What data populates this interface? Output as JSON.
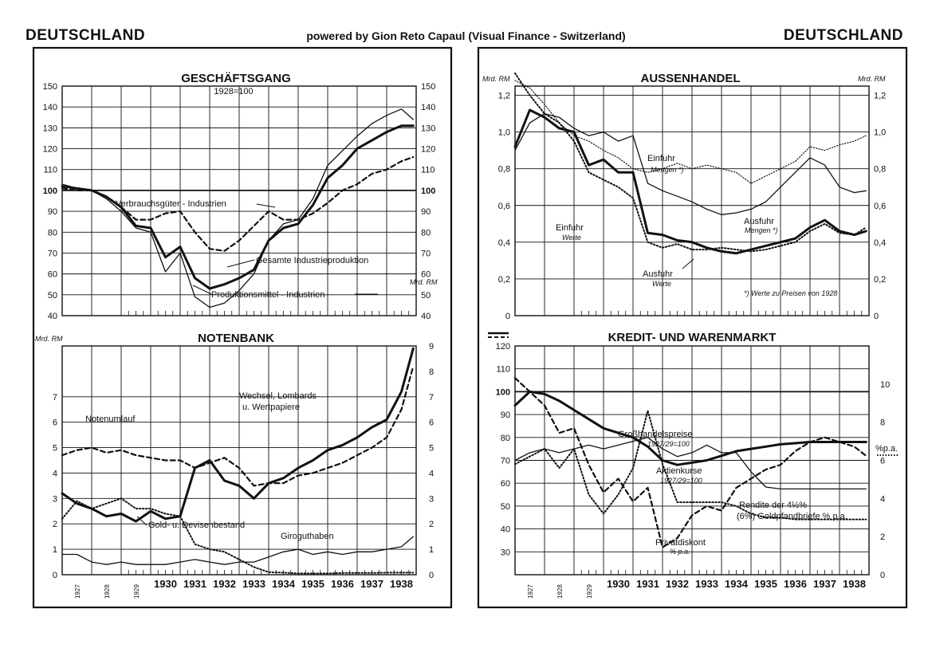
{
  "header": {
    "left_title": "DEUTSCHLAND",
    "right_title": "DEUTSCHLAND",
    "credit": "powered by Gion Reto Capaul (Visual Finance - Switzerland)"
  },
  "x_axis": {
    "small_labels": [
      "1927",
      "1928",
      "1929"
    ],
    "year_labels": [
      "1930",
      "1931",
      "1932",
      "1933",
      "1934",
      "1935",
      "1936",
      "1937",
      "1938"
    ]
  },
  "chart_data": [
    {
      "id": "geschaeftsgang",
      "type": "line",
      "title": "GESCHÄFTSGANG",
      "subtitle": "1928=100",
      "ylim": [
        40,
        150
      ],
      "yticks": [
        "150",
        "140",
        "130",
        "120",
        "110",
        "100",
        "90",
        "80",
        "70",
        "60",
        "50",
        "40"
      ],
      "x": [
        1927,
        1927.5,
        1928,
        1928.5,
        1929,
        1929.5,
        1930,
        1930.5,
        1931,
        1931.5,
        1932,
        1932.5,
        1933,
        1933.5,
        1934,
        1934.5,
        1935,
        1935.5,
        1936,
        1936.5,
        1937,
        1937.5,
        1938,
        1938.5,
        1938.9
      ],
      "series": [
        {
          "name": "Gesamte Industrieproduktion",
          "style": "thick",
          "values": [
            102,
            101,
            100,
            97,
            92,
            83,
            82,
            68,
            73,
            58,
            53,
            55,
            58,
            62,
            76,
            82,
            84,
            93,
            106,
            112,
            120,
            124,
            128,
            131,
            131
          ]
        },
        {
          "name": "Produktionsmittel - Industrien",
          "style": "thin",
          "values": [
            103,
            101,
            100,
            96,
            90,
            82,
            80,
            61,
            70,
            49,
            44,
            46,
            52,
            60,
            76,
            84,
            86,
            96,
            112,
            119,
            126,
            132,
            136,
            139,
            134
          ]
        },
        {
          "name": "Verbrauchsgüter - Industrien",
          "style": "dashed",
          "values": [
            101,
            100,
            100,
            97,
            92,
            86,
            86,
            89,
            90,
            80,
            72,
            71,
            76,
            83,
            90,
            86,
            86,
            89,
            94,
            100,
            103,
            108,
            110,
            114,
            116
          ]
        }
      ],
      "labels": {
        "verbrauch": "Verbrauchsgüter - Industrien",
        "gesamt": "Gesamte Industrieproduktion",
        "produktion": "Produktionsmittel - Industrien"
      }
    },
    {
      "id": "notenbank",
      "type": "line",
      "title": "NOTENBANK",
      "unit": "Mrd. RM",
      "ylim": [
        0,
        9
      ],
      "yticks_left": [
        "7",
        "6",
        "5",
        "4",
        "3",
        "2",
        "1",
        "0"
      ],
      "yticks_right": [
        "9",
        "8",
        "7",
        "6",
        "5",
        "4",
        "3",
        "2",
        "1",
        "0"
      ],
      "x": [
        1927,
        1927.5,
        1928,
        1928.5,
        1929,
        1929.5,
        1930,
        1930.5,
        1931,
        1931.5,
        1932,
        1932.5,
        1933,
        1933.5,
        1934,
        1934.5,
        1935,
        1935.5,
        1936,
        1936.5,
        1937,
        1937.5,
        1938,
        1938.5,
        1938.9
      ],
      "series": [
        {
          "name": "Notenumlauf",
          "style": "dashed",
          "values": [
            4.7,
            4.9,
            5.0,
            4.8,
            4.9,
            4.7,
            4.6,
            4.5,
            4.5,
            4.2,
            4.4,
            4.6,
            4.2,
            3.5,
            3.6,
            3.6,
            3.9,
            4.0,
            4.2,
            4.4,
            4.7,
            5.0,
            5.4,
            6.5,
            8.2
          ]
        },
        {
          "name": "Wechsel, Lombards u. Wertpapiere",
          "style": "thick",
          "values": [
            3.2,
            2.8,
            2.6,
            2.3,
            2.4,
            2.1,
            2.5,
            2.2,
            2.3,
            4.2,
            4.5,
            3.7,
            3.5,
            3.0,
            3.6,
            3.8,
            4.2,
            4.5,
            4.9,
            5.1,
            5.4,
            5.8,
            6.1,
            7.2,
            8.9
          ]
        },
        {
          "name": "Gold- u. Devisenbestand",
          "style": "dotted",
          "values": [
            2.2,
            2.9,
            2.6,
            2.8,
            3.0,
            2.6,
            2.6,
            2.4,
            2.3,
            1.2,
            1.0,
            0.9,
            0.6,
            0.3,
            0.1,
            0.08,
            0.05,
            0.05,
            0.05,
            0.07,
            0.07,
            0.07,
            0.08,
            0.08,
            0.08
          ]
        },
        {
          "name": "Giroguthaben",
          "style": "thin",
          "values": [
            0.8,
            0.8,
            0.5,
            0.4,
            0.5,
            0.4,
            0.4,
            0.4,
            0.5,
            0.6,
            0.5,
            0.4,
            0.5,
            0.5,
            0.7,
            0.9,
            1.0,
            0.8,
            0.9,
            0.8,
            0.9,
            0.9,
            1.0,
            1.1,
            1.5
          ]
        }
      ],
      "labels": {
        "noten": "Notenumlauf",
        "wechsel1": "Wechsel, Lombards",
        "wechsel2": "u. Wertpapiere",
        "gold": "Gold- u. Devisenbestand",
        "giro": "Giroguthaben"
      }
    },
    {
      "id": "aussenhandel",
      "type": "line",
      "title": "AUSSENHANDEL",
      "unit": "Mrd. RM",
      "ylim": [
        0,
        1.25
      ],
      "yticks": [
        "1,2",
        "1,0",
        "0,8",
        "0,6",
        "0,4",
        "0,2",
        "0"
      ],
      "x": [
        1927,
        1927.5,
        1928,
        1928.5,
        1929,
        1929.5,
        1930,
        1930.5,
        1931,
        1931.5,
        1932,
        1932.5,
        1933,
        1933.5,
        1934,
        1934.5,
        1935,
        1935.5,
        1936,
        1936.5,
        1937,
        1937.5,
        1938,
        1938.5,
        1938.9
      ],
      "series": [
        {
          "name": "Ausfuhr Werte",
          "style": "thick",
          "values": [
            0.92,
            1.12,
            1.08,
            1.02,
            1.0,
            0.82,
            0.85,
            0.78,
            0.78,
            0.45,
            0.44,
            0.41,
            0.4,
            0.37,
            0.35,
            0.34,
            0.36,
            0.38,
            0.4,
            0.42,
            0.48,
            0.52,
            0.46,
            0.44,
            0.46
          ]
        },
        {
          "name": "Einfuhr Werte",
          "style": "dotted",
          "values": [
            1.32,
            1.2,
            1.1,
            1.05,
            0.95,
            0.78,
            0.74,
            0.7,
            0.64,
            0.4,
            0.37,
            0.39,
            0.36,
            0.36,
            0.37,
            0.36,
            0.35,
            0.36,
            0.38,
            0.4,
            0.46,
            0.5,
            0.45,
            0.44,
            0.48
          ]
        },
        {
          "name": "Ausfuhr Mengen",
          "style": "thin",
          "values": [
            0.9,
            1.05,
            1.1,
            1.08,
            1.02,
            0.98,
            1.0,
            0.95,
            0.98,
            0.72,
            0.68,
            0.65,
            0.62,
            0.58,
            0.55,
            0.56,
            0.58,
            0.62,
            0.7,
            0.78,
            0.86,
            0.82,
            0.7,
            0.67,
            0.68
          ]
        },
        {
          "name": "Einfuhr Mengen",
          "style": "dotted-thin",
          "values": [
            1.28,
            1.24,
            1.15,
            1.05,
            0.98,
            0.95,
            0.9,
            0.86,
            0.8,
            0.78,
            0.8,
            0.83,
            0.8,
            0.82,
            0.8,
            0.78,
            0.72,
            0.76,
            0.8,
            0.84,
            0.92,
            0.9,
            0.93,
            0.95,
            0.98
          ]
        }
      ],
      "labels": {
        "einfuhr_m": "Einfuhr",
        "einfuhr_m_sub": "Mengen *)",
        "ausfuhr_m": "Ausfuhr",
        "ausfuhr_m_sub": "Mengen *)",
        "einfuhr_w": "Einfuhr",
        "einfuhr_w_sub": "Werte",
        "ausfuhr_w": "Ausfuhr",
        "ausfuhr_w_sub": "Werte",
        "footnote": "*) Werte zu Preisen von 1928"
      }
    },
    {
      "id": "kredit_warenmarkt",
      "type": "line",
      "title": "KREDIT- UND WARENMARKT",
      "ylim": [
        20,
        120
      ],
      "yticks_left": [
        "120",
        "110",
        "100",
        "90",
        "80",
        "70",
        "60",
        "50",
        "40",
        "30"
      ],
      "right_axis_label": "%p.a.",
      "yticks_right": [
        "10",
        "8",
        "6",
        "4",
        "2",
        "0"
      ],
      "x": [
        1927,
        1927.5,
        1928,
        1928.5,
        1929,
        1929.5,
        1930,
        1930.5,
        1931,
        1931.5,
        1932,
        1932.5,
        1933,
        1933.5,
        1934,
        1934.5,
        1935,
        1935.5,
        1936,
        1936.5,
        1937,
        1937.5,
        1938,
        1938.5,
        1938.9
      ],
      "series": [
        {
          "name": "Großhandelspreise 1927/29=100",
          "axis": "left",
          "style": "thick",
          "values": [
            94,
            100,
            99,
            96,
            92,
            88,
            84,
            82,
            80,
            76,
            70,
            68,
            69,
            70,
            72,
            74,
            75,
            76,
            77,
            77.5,
            78,
            78,
            78,
            78,
            78
          ]
        },
        {
          "name": "Aktienkurse 1927/29=100",
          "axis": "left",
          "style": "dashed",
          "values": [
            106,
            100,
            94,
            82,
            84,
            68,
            56,
            62,
            52,
            58,
            32,
            36,
            46,
            50,
            48,
            58,
            62,
            66,
            68,
            74,
            78,
            80,
            78,
            76,
            72
          ]
        },
        {
          "name": "Rendite der 4½% (6%) Goldpfandbriefe % p.a.",
          "axis": "right",
          "style": "thin",
          "values": [
            6.0,
            6.4,
            6.6,
            6.4,
            6.6,
            6.8,
            6.6,
            6.8,
            7.0,
            7.2,
            6.6,
            6.2,
            6.4,
            6.8,
            6.4,
            6.4,
            5.4,
            4.6,
            4.5,
            4.5,
            4.5,
            4.5,
            4.5,
            4.5,
            4.5
          ]
        },
        {
          "name": "Privatdiskont % p.a.",
          "axis": "right",
          "style": "dotted",
          "values": [
            5.8,
            6.2,
            6.6,
            5.6,
            6.6,
            4.2,
            3.2,
            4.2,
            5.6,
            8.6,
            5.8,
            3.8,
            3.8,
            3.8,
            3.8,
            3.6,
            3.2,
            3.0,
            3.0,
            2.9,
            2.9,
            2.9,
            2.9,
            2.9,
            2.9
          ]
        }
      ],
      "labels": {
        "gross": "Großhandelspreise",
        "gross_sub": "1927/29=100",
        "aktien": "Aktienkurse",
        "aktien_sub": "1927/29=100",
        "rendite": "Rendite der 4½%",
        "rendite_sub": "(6%) Goldpfandbriefe % p.a.",
        "privat": "Privatdiskont",
        "privat_sub": "% p.a."
      }
    }
  ]
}
